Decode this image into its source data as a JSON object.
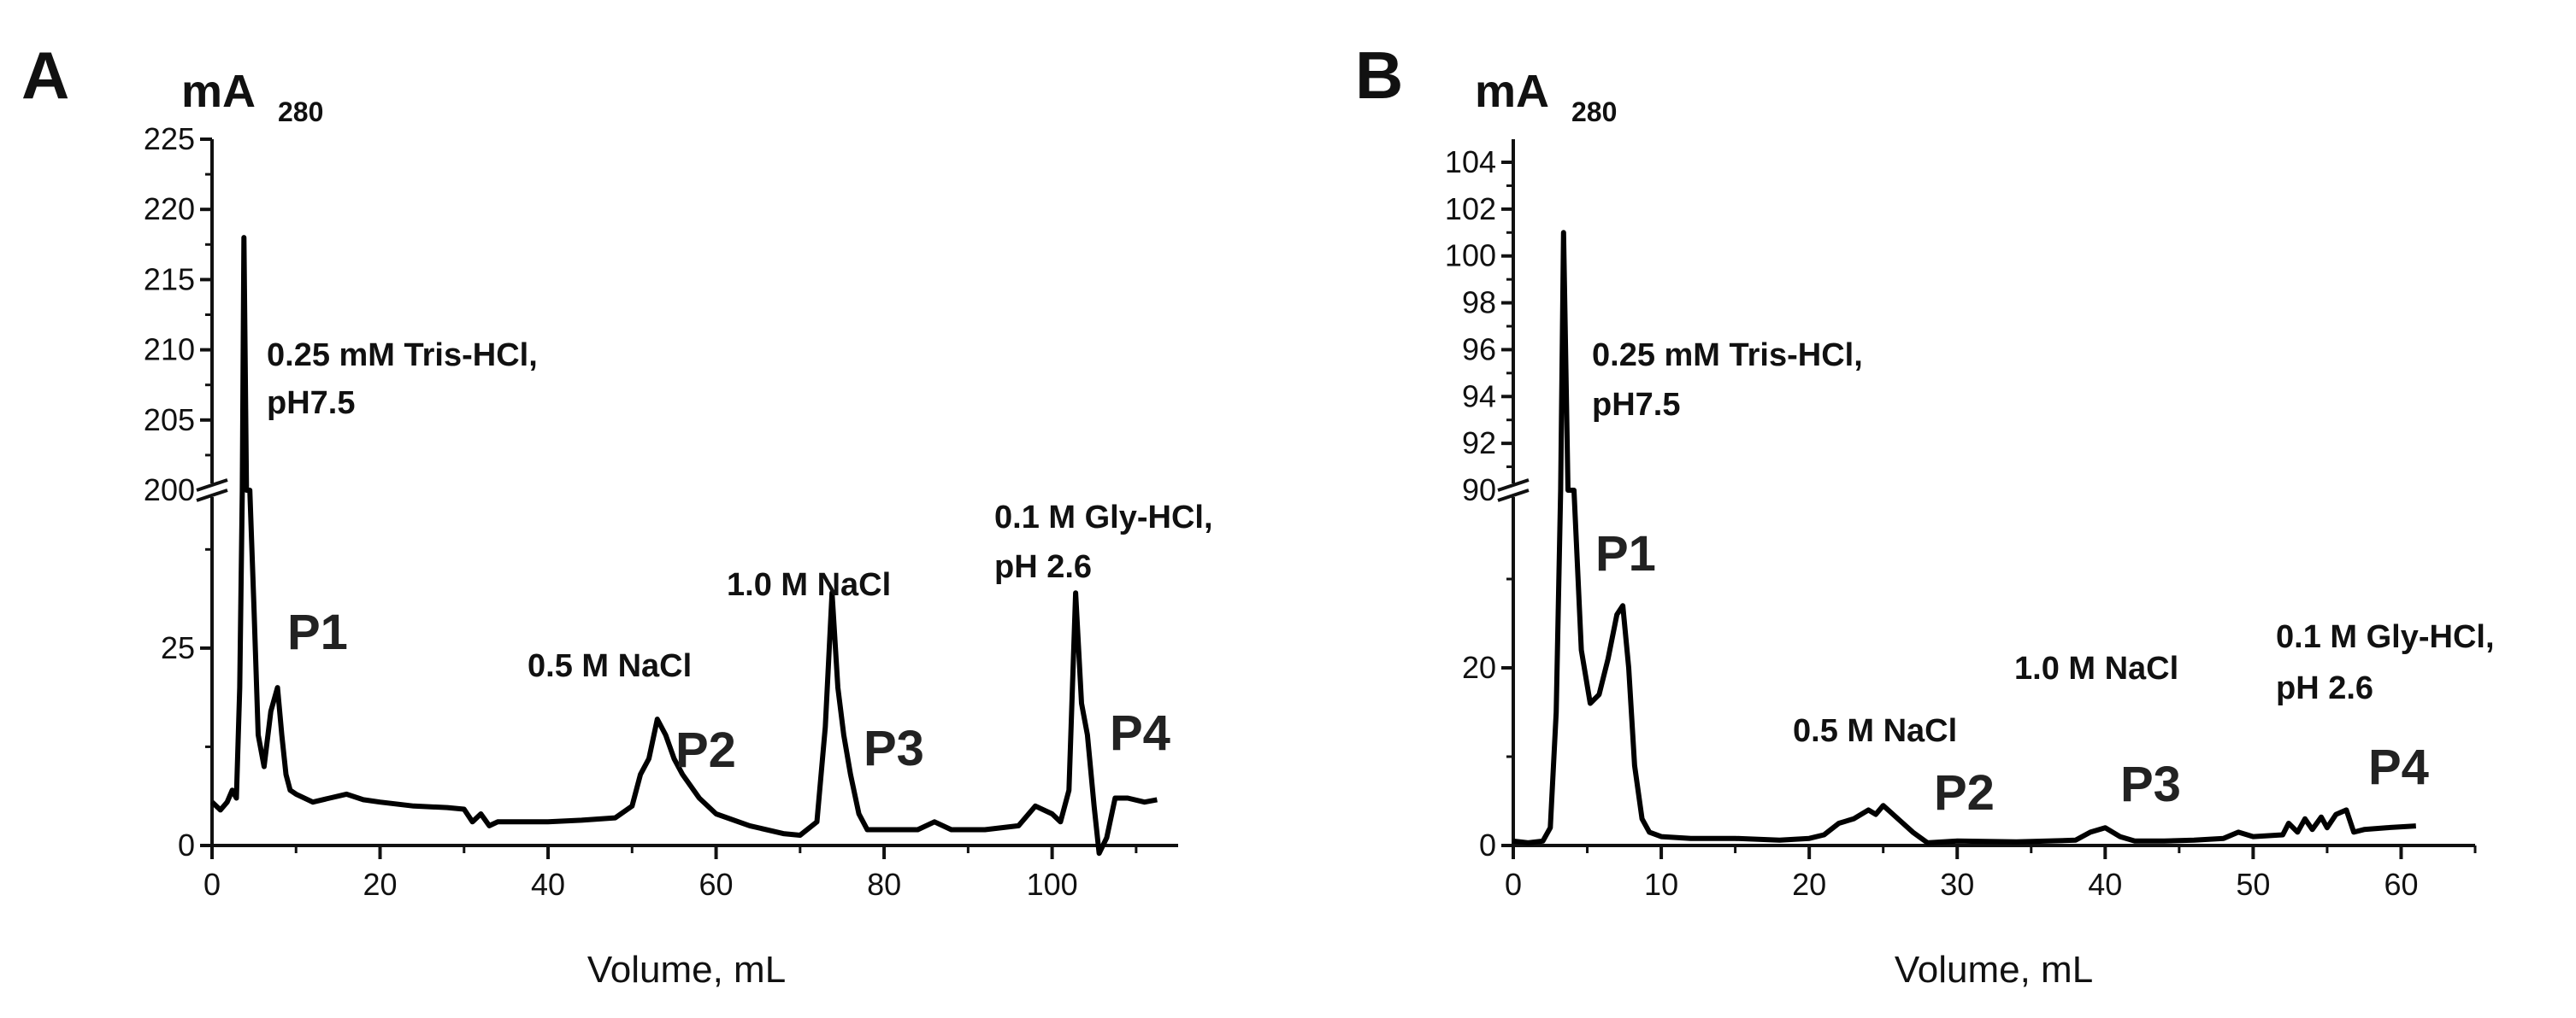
{
  "chart_data": [
    {
      "type": "line",
      "panel_label": "A",
      "ylabel_main": "mA",
      "ylabel_sub": "280",
      "xlabel": "Volume, mL",
      "xlim": [
        0,
        115
      ],
      "x_ticks": [
        0,
        20,
        40,
        60,
        80,
        100
      ],
      "broken_y_axis": true,
      "y_lower_range": [
        0,
        45
      ],
      "y_lower_ticks": [
        0,
        25
      ],
      "y_upper_range": [
        200,
        225
      ],
      "y_upper_ticks": [
        200,
        205,
        210,
        215,
        220,
        225
      ],
      "annotations": [
        {
          "id": "tris",
          "lines": [
            "0.25 mM Tris-HCl,",
            "pH7.5"
          ]
        },
        {
          "id": "nacl05",
          "lines": [
            "0.5 M NaCl"
          ]
        },
        {
          "id": "nacl10",
          "lines": [
            "1.0 M NaCl"
          ]
        },
        {
          "id": "gly",
          "lines": [
            "0.1 M Gly-HCl,",
            "pH 2.6"
          ]
        }
      ],
      "peaks": [
        "P1",
        "P2",
        "P3",
        "P4"
      ],
      "series": [
        {
          "x": [
            0,
            1,
            1.8,
            2.4,
            2.9,
            3.3,
            3.6,
            3.8,
            4.1,
            4.5,
            5.0,
            5.5,
            6.2,
            7.0,
            7.8,
            8.3,
            8.8,
            9.3,
            10,
            12,
            14,
            16,
            18,
            20,
            24,
            28,
            30,
            31,
            32,
            33,
            34,
            36,
            40,
            44,
            48,
            50,
            51,
            52,
            53,
            54,
            55,
            56,
            58,
            60,
            64,
            68,
            70,
            72,
            73,
            73.8,
            74.5,
            75.2,
            76,
            77,
            78,
            80,
            84,
            86,
            88,
            92,
            96,
            98,
            100,
            101,
            102,
            102.8,
            103.5,
            104.2,
            105,
            105.6,
            106.5,
            107.5,
            109,
            111,
            112.5
          ],
          "y": [
            5.5,
            4.5,
            5.5,
            7,
            6,
            20,
            160,
            218,
            190,
            60,
            30,
            14,
            10,
            17,
            20,
            14,
            9,
            7,
            6.5,
            5.5,
            6,
            6.5,
            5.8,
            5.5,
            5,
            4.8,
            4.6,
            3,
            4,
            2.5,
            3,
            3,
            3,
            3.2,
            3.5,
            5,
            9,
            11,
            16,
            14,
            11,
            9,
            6,
            4,
            2.5,
            1.5,
            1.3,
            3,
            15,
            32,
            20,
            14,
            9,
            4,
            2,
            2,
            2,
            3,
            2,
            2,
            2.5,
            5,
            4,
            3,
            7,
            32,
            18,
            14,
            5,
            -1,
            1,
            6,
            6,
            5.5,
            5.8
          ]
        }
      ]
    },
    {
      "type": "line",
      "panel_label": "B",
      "ylabel_main": "mA",
      "ylabel_sub": "280",
      "xlabel": "Volume, mL",
      "xlim": [
        0,
        65
      ],
      "x_ticks": [
        0,
        10,
        20,
        30,
        40,
        50,
        60
      ],
      "broken_y_axis": true,
      "y_lower_range": [
        0,
        40
      ],
      "y_lower_ticks": [
        0,
        20
      ],
      "y_upper_range": [
        90,
        104
      ],
      "y_upper_ticks": [
        90,
        92,
        94,
        96,
        98,
        100,
        102,
        104
      ],
      "annotations": [
        {
          "id": "tris",
          "lines": [
            "0.25 mM Tris-HCl,",
            "pH7.5"
          ]
        },
        {
          "id": "nacl05",
          "lines": [
            "0.5 M NaCl"
          ]
        },
        {
          "id": "nacl10",
          "lines": [
            "1.0 M NaCl"
          ]
        },
        {
          "id": "gly",
          "lines": [
            "0.1 M Gly-HCl,",
            "pH 2.6"
          ]
        }
      ],
      "peaks": [
        "P1",
        "P2",
        "P3",
        "P4"
      ],
      "series": [
        {
          "x": [
            0,
            1,
            2,
            2.5,
            2.9,
            3.2,
            3.4,
            3.7,
            4.1,
            4.6,
            5.2,
            5.8,
            6.4,
            7.0,
            7.4,
            7.8,
            8.2,
            8.7,
            9.2,
            10,
            12,
            15,
            18,
            20,
            21,
            22,
            23,
            24,
            24.5,
            25,
            26,
            27,
            28,
            30,
            34,
            38,
            39,
            40,
            41,
            42,
            44,
            46,
            48,
            49,
            50,
            52,
            52.4,
            53,
            53.5,
            54,
            54.6,
            55,
            55.6,
            56.3,
            56.8,
            57.5,
            59,
            61
          ],
          "y": [
            0.5,
            0.3,
            0.5,
            2,
            15,
            60,
            101,
            85,
            48,
            22,
            16,
            17,
            21,
            26,
            27,
            20,
            9,
            3,
            1.5,
            1,
            0.8,
            0.8,
            0.6,
            0.8,
            1.2,
            2.5,
            3,
            4,
            3.5,
            4.5,
            3,
            1.5,
            0.3,
            0.5,
            0.4,
            0.6,
            1.5,
            2,
            1,
            0.5,
            0.5,
            0.6,
            0.8,
            1.5,
            1,
            1.2,
            2.5,
            1.5,
            3,
            1.8,
            3.2,
            2,
            3.5,
            4,
            1.5,
            1.8,
            2,
            2.2
          ]
        }
      ]
    }
  ]
}
